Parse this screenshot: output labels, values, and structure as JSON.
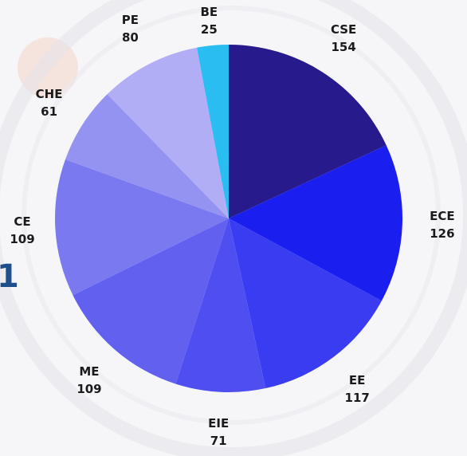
{
  "edge_glyph": "1",
  "chart_data": {
    "type": "pie",
    "title": "",
    "start_angle_deg": 0,
    "direction": "clockwise",
    "slices": [
      {
        "label": "CSE",
        "value": 154,
        "color": "#271a8c"
      },
      {
        "label": "ECE",
        "value": 126,
        "color": "#1a1ff0"
      },
      {
        "label": "EE",
        "value": 117,
        "color": "#3a3cf2"
      },
      {
        "label": "EIE",
        "value": 71,
        "color": "#4f4ef0"
      },
      {
        "label": "ME",
        "value": 109,
        "color": "#6160ef"
      },
      {
        "label": "CE",
        "value": 109,
        "color": "#7b79ef"
      },
      {
        "label": "CHE",
        "value": 61,
        "color": "#9593f2"
      },
      {
        "label": "PE",
        "value": 80,
        "color": "#b1aef5"
      },
      {
        "label": "BE",
        "value": 25,
        "color": "#29bdf2"
      }
    ]
  }
}
